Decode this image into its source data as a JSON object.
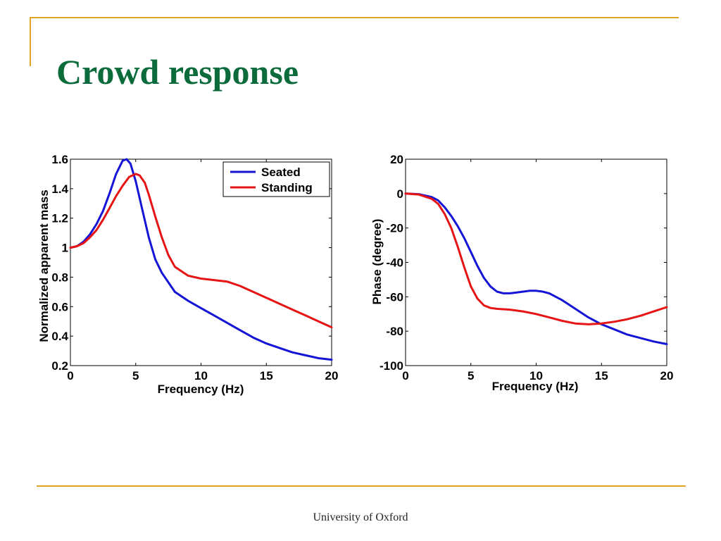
{
  "slide": {
    "title": "Crowd response",
    "footer": "University of  Oxford",
    "accent_color": "#E0A526",
    "title_color": "#0B6B3A"
  },
  "chart_data": [
    {
      "type": "line",
      "xlabel": "Frequency (Hz)",
      "ylabel": "Normalized apparent mass",
      "xlim": [
        0,
        20
      ],
      "ylim": [
        0.2,
        1.6
      ],
      "xticks": [
        "0",
        "5",
        "10",
        "15",
        "20"
      ],
      "yticks": [
        "0.2",
        "0.4",
        "0.6",
        "0.8",
        "1",
        "1.2",
        "1.4",
        "1.6"
      ],
      "grid": false,
      "legend_position": "top-right",
      "series": [
        {
          "name": "Seated",
          "color": "#1515D6",
          "x": [
            0,
            0.5,
            1,
            1.5,
            2,
            2.5,
            3,
            3.5,
            4,
            4.3,
            4.6,
            5,
            5.5,
            6,
            6.5,
            7,
            8,
            9,
            10,
            11,
            12,
            13,
            14,
            15,
            16,
            17,
            18,
            19,
            20
          ],
          "y": [
            1.0,
            1.01,
            1.04,
            1.09,
            1.16,
            1.25,
            1.37,
            1.5,
            1.59,
            1.6,
            1.57,
            1.45,
            1.26,
            1.07,
            0.92,
            0.83,
            0.7,
            0.64,
            0.59,
            0.54,
            0.49,
            0.44,
            0.39,
            0.35,
            0.32,
            0.29,
            0.27,
            0.25,
            0.24
          ]
        },
        {
          "name": "Standing",
          "color": "#E51515",
          "x": [
            0,
            0.5,
            1,
            1.5,
            2,
            2.5,
            3,
            3.5,
            4,
            4.5,
            5,
            5.3,
            5.7,
            6,
            6.5,
            7,
            7.5,
            8,
            9,
            10,
            11,
            12,
            13,
            14,
            15,
            16,
            17,
            18,
            19,
            20
          ],
          "y": [
            1.0,
            1.01,
            1.03,
            1.07,
            1.12,
            1.19,
            1.27,
            1.35,
            1.42,
            1.48,
            1.5,
            1.49,
            1.44,
            1.36,
            1.21,
            1.07,
            0.95,
            0.87,
            0.81,
            0.79,
            0.78,
            0.77,
            0.74,
            0.7,
            0.66,
            0.62,
            0.58,
            0.54,
            0.5,
            0.46
          ]
        }
      ]
    },
    {
      "type": "line",
      "xlabel": "Frequency (Hz)",
      "ylabel": "Phase (degree)",
      "xlim": [
        0,
        20
      ],
      "ylim": [
        -100,
        20
      ],
      "xticks": [
        "0",
        "5",
        "10",
        "15",
        "20"
      ],
      "yticks": [
        "-100",
        "-80",
        "-60",
        "-40",
        "-20",
        "0",
        "20"
      ],
      "grid": false,
      "series": [
        {
          "name": "Seated",
          "color": "#1515D6",
          "x": [
            0,
            1,
            2,
            2.5,
            3,
            3.5,
            4,
            4.5,
            5,
            5.5,
            6,
            6.5,
            7,
            7.5,
            8,
            8.5,
            9,
            9.5,
            10,
            10.5,
            11,
            12,
            13,
            14,
            15,
            16,
            17,
            18,
            19,
            20
          ],
          "y": [
            0,
            -0.3,
            -2,
            -4,
            -8,
            -13,
            -19,
            -26,
            -34,
            -42,
            -49,
            -54,
            -57,
            -58,
            -58,
            -57.5,
            -57,
            -56.5,
            -56.5,
            -57,
            -58,
            -62,
            -67,
            -72,
            -76,
            -79,
            -82,
            -84,
            -86,
            -87.5
          ]
        },
        {
          "name": "Standing",
          "color": "#E51515",
          "x": [
            0,
            1,
            2,
            2.5,
            3,
            3.5,
            4,
            4.5,
            5,
            5.5,
            6,
            6.5,
            7,
            8,
            9,
            10,
            11,
            12,
            13,
            14,
            15,
            16,
            17,
            18,
            19,
            20
          ],
          "y": [
            0,
            -0.5,
            -3,
            -6,
            -12,
            -20,
            -31,
            -43,
            -54,
            -61,
            -65,
            -66.5,
            -67,
            -67.5,
            -68.5,
            -70,
            -72,
            -74,
            -75.5,
            -76,
            -75.5,
            -74.5,
            -73,
            -71,
            -68.5,
            -66
          ]
        }
      ]
    }
  ]
}
